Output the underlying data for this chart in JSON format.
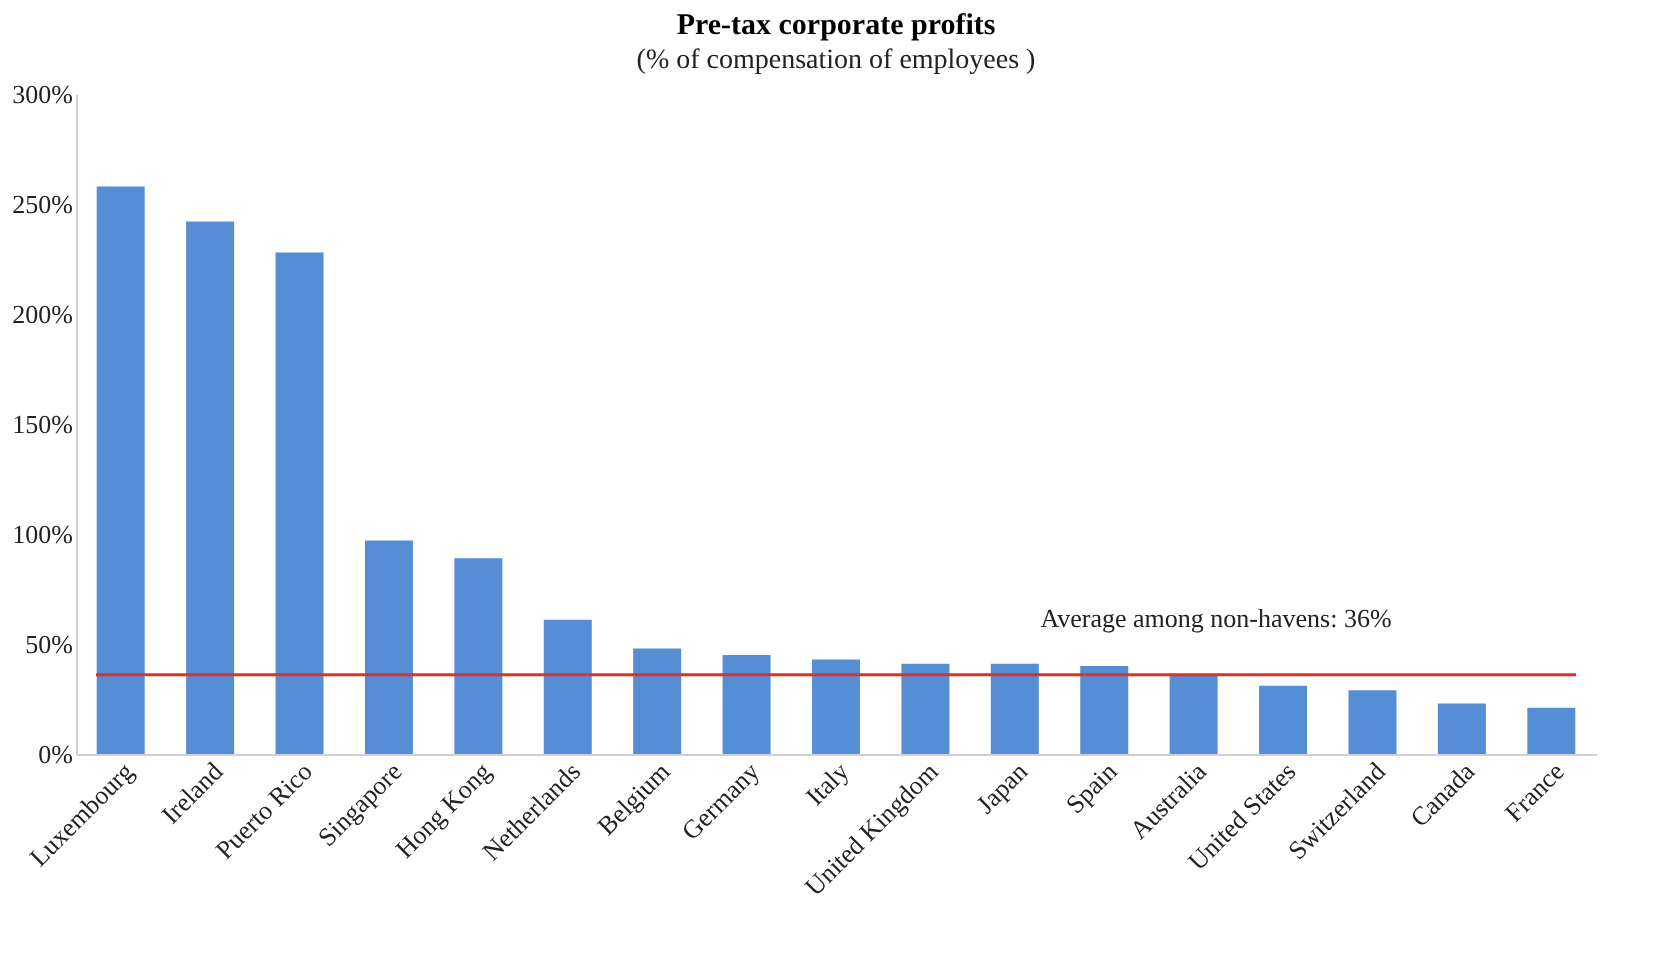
{
  "chart_data": {
    "type": "bar",
    "title": "Pre-tax corporate profits",
    "subtitle": "(% of compensation of employees )",
    "categories": [
      "Luxembourg",
      "Ireland",
      "Puerto Rico",
      "Singapore",
      "Hong Kong",
      "Netherlands",
      "Belgium",
      "Germany",
      "Italy",
      "United Kingdom",
      "Japan",
      "Spain",
      "Australia",
      "United States",
      "Switzerland",
      "Canada",
      "France"
    ],
    "values": [
      258,
      242,
      228,
      97,
      89,
      61,
      48,
      45,
      43,
      41,
      41,
      40,
      36,
      31,
      29,
      23,
      21
    ],
    "color": "#558ed5",
    "ylim": [
      0,
      300
    ],
    "yticks": [
      {
        "value": 0,
        "label": "0%"
      },
      {
        "value": 50,
        "label": "50%"
      },
      {
        "value": 100,
        "label": "100%"
      },
      {
        "value": 150,
        "label": "150%"
      },
      {
        "value": 200,
        "label": "200%"
      },
      {
        "value": 250,
        "label": "250%"
      },
      {
        "value": 300,
        "label": "300%"
      }
    ],
    "ref_lines": [
      {
        "axis": "y",
        "value": 36,
        "label": "Average among non-havens: 36%",
        "color": "#e0302a"
      }
    ],
    "grid": false
  }
}
